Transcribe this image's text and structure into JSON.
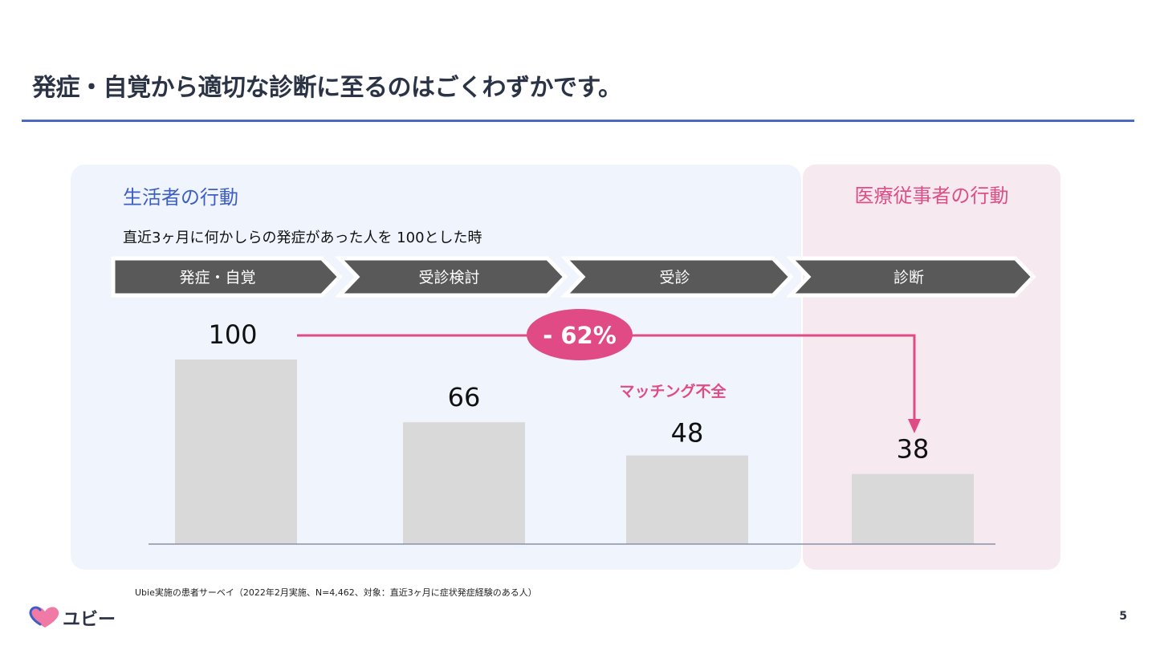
{
  "title": "発症・自覚から適切な診断に至るのはごくわずかです。",
  "sections": {
    "left_header": "生活者の行動",
    "right_header": "医療従事者の行動"
  },
  "subtitle": "直近3ヶ月に何かしらの発症があった人を 100とした時",
  "chart_data": {
    "type": "bar",
    "categories": [
      "発症・自覚",
      "受診検討",
      "受診",
      "診断"
    ],
    "values": [
      100,
      66,
      48,
      38
    ],
    "ylim": [
      0,
      100
    ],
    "annotations": {
      "drop_label": "- 62%",
      "mismatch_label": "マッチング不全"
    }
  },
  "colors": {
    "bar": "#d9d9d9",
    "step": "#595959",
    "accent": "#e04b85",
    "blue": "#3d5fc4"
  },
  "footnote": "Ubie実施の患者サーベイ（2022年2月実施、N=4,462、対象：直近3ヶ月に症状発症経験のある人）",
  "logo": {
    "text": "ユビー",
    "icon": "heart-logo-icon"
  },
  "page_number": "5"
}
